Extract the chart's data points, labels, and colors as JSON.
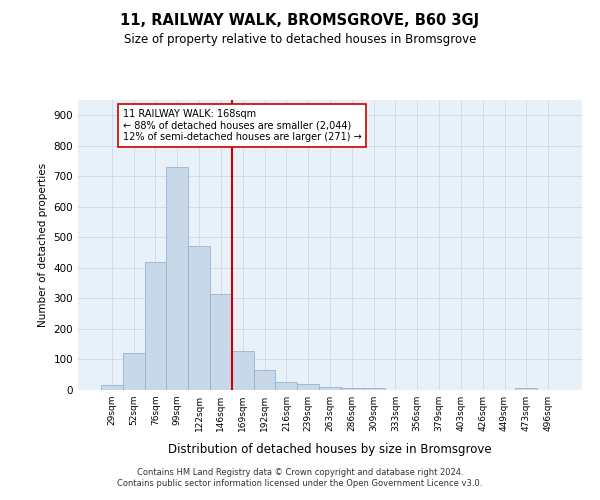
{
  "title1": "11, RAILWAY WALK, BROMSGROVE, B60 3GJ",
  "title2": "Size of property relative to detached houses in Bromsgrove",
  "xlabel": "Distribution of detached houses by size in Bromsgrove",
  "ylabel": "Number of detached properties",
  "categories": [
    "29sqm",
    "52sqm",
    "76sqm",
    "99sqm",
    "122sqm",
    "146sqm",
    "169sqm",
    "192sqm",
    "216sqm",
    "239sqm",
    "263sqm",
    "286sqm",
    "309sqm",
    "333sqm",
    "356sqm",
    "379sqm",
    "403sqm",
    "426sqm",
    "449sqm",
    "473sqm",
    "496sqm"
  ],
  "values": [
    17,
    122,
    418,
    730,
    472,
    315,
    128,
    65,
    25,
    20,
    10,
    5,
    5,
    0,
    0,
    0,
    0,
    0,
    0,
    7,
    0
  ],
  "bar_color": "#c8d8e8",
  "bar_edge_color": "#8aaccb",
  "vline_index": 6,
  "annotation_text1": "11 RAILWAY WALK: 168sqm",
  "annotation_text2": "← 88% of detached houses are smaller (2,044)",
  "annotation_text3": "12% of semi-detached houses are larger (271) →",
  "vline_color": "#cc0000",
  "annotation_box_edge_color": "#cc0000",
  "grid_color": "#d0dce8",
  "background_color": "#e8f0f8",
  "footer1": "Contains HM Land Registry data © Crown copyright and database right 2024.",
  "footer2": "Contains public sector information licensed under the Open Government Licence v3.0.",
  "ylim": [
    0,
    950
  ],
  "yticks": [
    0,
    100,
    200,
    300,
    400,
    500,
    600,
    700,
    800,
    900
  ]
}
